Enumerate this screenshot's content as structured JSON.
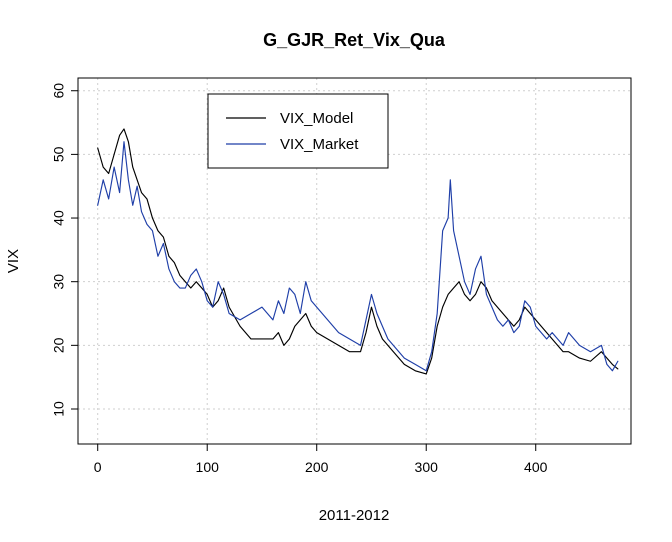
{
  "chart_data": {
    "type": "line",
    "title": "G_GJR_Ret_Vix_Qua",
    "xlabel": "2011-2012",
    "ylabel": "VIX",
    "xlim": [
      -18,
      487
    ],
    "ylim": [
      4.5,
      62
    ],
    "xticks": [
      0,
      100,
      200,
      300,
      400
    ],
    "yticks": [
      10,
      20,
      30,
      40,
      50,
      60
    ],
    "xtick_labels": [
      "0",
      "100",
      "200",
      "300",
      "400"
    ],
    "ytick_labels": [
      "10",
      "20",
      "30",
      "40",
      "50",
      "60"
    ],
    "grid": true,
    "legend": {
      "position": "top-center",
      "entries": [
        {
          "name": "VIX_Model",
          "color": "#000000"
        },
        {
          "name": "VIX_Market",
          "color": "#1f3fa8"
        }
      ]
    },
    "series": [
      {
        "name": "VIX_Model",
        "color": "#000000",
        "x": [
          0,
          5,
          10,
          15,
          20,
          24,
          28,
          32,
          36,
          40,
          45,
          50,
          55,
          60,
          65,
          70,
          75,
          80,
          85,
          90,
          95,
          100,
          105,
          110,
          115,
          120,
          130,
          140,
          150,
          160,
          165,
          170,
          175,
          180,
          185,
          190,
          195,
          200,
          210,
          220,
          230,
          240,
          245,
          250,
          255,
          260,
          265,
          270,
          280,
          290,
          300,
          305,
          310,
          315,
          320,
          325,
          330,
          335,
          340,
          345,
          350,
          355,
          360,
          365,
          370,
          375,
          380,
          385,
          390,
          395,
          400,
          405,
          410,
          415,
          420,
          425,
          430,
          440,
          450,
          460,
          465,
          470,
          475
        ],
        "y": [
          51,
          48,
          47,
          50,
          53,
          54,
          52,
          48,
          46,
          44,
          43,
          40,
          38,
          37,
          34,
          33,
          31,
          30,
          29,
          30,
          29,
          28,
          26,
          27,
          29,
          26,
          23,
          21,
          21,
          21,
          22,
          20,
          21,
          23,
          24,
          25,
          23,
          22,
          21,
          20,
          19,
          19,
          22,
          26,
          23,
          21,
          20,
          19,
          17,
          16,
          15.5,
          18,
          23,
          26,
          28,
          29,
          30,
          28,
          27,
          28,
          30,
          29,
          27,
          26,
          25,
          24,
          23,
          24,
          26,
          25,
          24,
          23,
          22,
          21,
          20,
          19,
          19,
          18,
          17.5,
          19,
          18,
          17,
          16.3
        ]
      },
      {
        "name": "VIX_Market",
        "color": "#1f3fa8",
        "x": [
          0,
          5,
          10,
          15,
          20,
          24,
          28,
          32,
          36,
          40,
          45,
          50,
          55,
          60,
          65,
          70,
          75,
          80,
          85,
          90,
          95,
          100,
          105,
          110,
          115,
          120,
          130,
          140,
          150,
          160,
          165,
          170,
          175,
          180,
          185,
          190,
          195,
          200,
          210,
          220,
          230,
          240,
          245,
          250,
          255,
          260,
          265,
          270,
          280,
          290,
          300,
          305,
          310,
          315,
          320,
          322,
          325,
          330,
          335,
          340,
          345,
          350,
          355,
          360,
          365,
          370,
          375,
          380,
          385,
          390,
          395,
          400,
          405,
          410,
          415,
          420,
          425,
          430,
          440,
          450,
          460,
          465,
          470,
          475
        ],
        "y": [
          42,
          46,
          43,
          48,
          44,
          52,
          46,
          42,
          45,
          41,
          39,
          38,
          34,
          36,
          32,
          30,
          29,
          29,
          31,
          32,
          30,
          27,
          26,
          30,
          28,
          25,
          24,
          25,
          26,
          24,
          27,
          25,
          29,
          28,
          25,
          30,
          27,
          26,
          24,
          22,
          21,
          20,
          24,
          28,
          25,
          23,
          21,
          20,
          18,
          17,
          16,
          19,
          25,
          38,
          40,
          46,
          38,
          34,
          30,
          28,
          32,
          34,
          28,
          26,
          24,
          23,
          24,
          22,
          23,
          27,
          26,
          23,
          22,
          21,
          22,
          21,
          20,
          22,
          20,
          19,
          20,
          17,
          16,
          17.5
        ]
      }
    ]
  }
}
